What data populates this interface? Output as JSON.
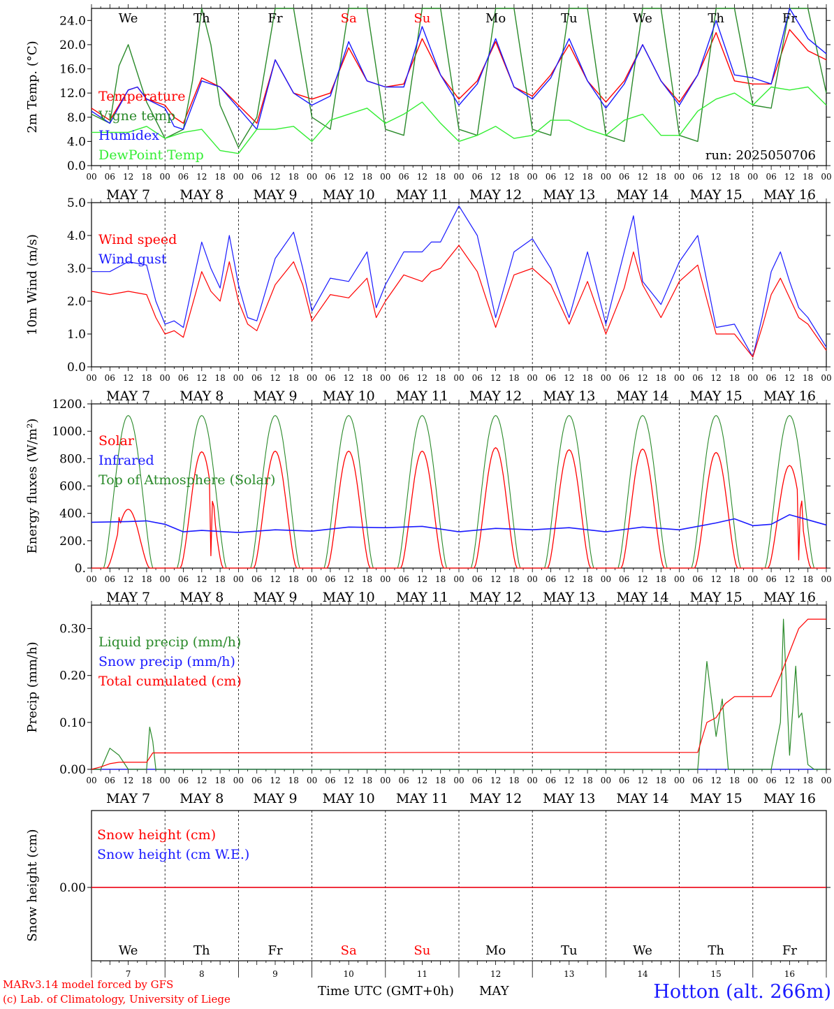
{
  "colors": {
    "red": "#ff0000",
    "blue": "#1a1aff",
    "green": "#2a8a2a",
    "lightgreen": "#33ee33",
    "black": "#000000"
  },
  "days": [
    {
      "abbr": "We",
      "label": "MAY  7",
      "num": "7",
      "weekend": false
    },
    {
      "abbr": "Th",
      "label": "MAY  8",
      "num": "8",
      "weekend": false
    },
    {
      "abbr": "Fr",
      "label": "MAY  9",
      "num": "9",
      "weekend": false
    },
    {
      "abbr": "Sa",
      "label": "MAY 10",
      "num": "10",
      "weekend": true
    },
    {
      "abbr": "Su",
      "label": "MAY 11",
      "num": "11",
      "weekend": true
    },
    {
      "abbr": "Mo",
      "label": "MAY 12",
      "num": "12",
      "weekend": false
    },
    {
      "abbr": "Tu",
      "label": "MAY 13",
      "num": "13",
      "weekend": false
    },
    {
      "abbr": "We",
      "label": "MAY 14",
      "num": "14",
      "weekend": false
    },
    {
      "abbr": "Th",
      "label": "MAY 15",
      "num": "15",
      "weekend": false
    },
    {
      "abbr": "Fr",
      "label": "MAY 16",
      "num": "16",
      "weekend": false
    }
  ],
  "hour_ticks": [
    "00",
    "06",
    "12",
    "18"
  ],
  "run_label": "run: 2025050706",
  "footer": {
    "model": "MARv3.14 model forced by GFS",
    "copyright": "(c) Lab. of Climatology, University of Liege",
    "xlabel": "Time UTC (GMT+0h)",
    "month": "MAY",
    "station": "Hotton (alt. 266m)"
  },
  "chart_data": [
    {
      "type": "line",
      "ylabel": "2m Temp. (°C)",
      "ylim": [
        0,
        26
      ],
      "yticks": [
        "0.0",
        "4.0",
        "8.0",
        "12.0",
        "16.0",
        "20.0",
        "24.0"
      ],
      "x_unit": "hours since MAY 7 00 UTC",
      "series": [
        {
          "name": "Temperature",
          "color": "red",
          "x": [
            0,
            6,
            12,
            15,
            18,
            24,
            27,
            30,
            36,
            42,
            48,
            54,
            60,
            66,
            72,
            78,
            84,
            90,
            96,
            102,
            108,
            114,
            120,
            126,
            132,
            138,
            144,
            150,
            156,
            162,
            168,
            174,
            180,
            186,
            192,
            198,
            204,
            210,
            216,
            222,
            228,
            234,
            240
          ],
          "y": [
            9.5,
            7.5,
            12.5,
            13,
            11,
            10,
            8,
            7,
            14.5,
            13,
            10,
            7,
            17.5,
            12,
            11,
            12,
            19.5,
            14,
            13,
            13.5,
            21,
            15,
            11,
            14,
            20.5,
            13,
            11.5,
            15,
            20,
            14,
            10.5,
            14,
            20,
            14,
            10.5,
            15,
            22,
            14,
            13.5,
            13.5,
            22.5,
            19,
            17.5
          ]
        },
        {
          "name": "Vigne temp",
          "color": "green",
          "x": [
            0,
            6,
            9,
            12,
            18,
            24,
            30,
            33,
            36,
            39,
            42,
            48,
            54,
            60,
            66,
            72,
            78,
            84,
            90,
            96,
            102,
            108,
            114,
            120,
            126,
            132,
            138,
            144,
            150,
            156,
            162,
            168,
            174,
            180,
            186,
            192,
            198,
            204,
            210,
            216,
            222,
            228,
            234,
            240
          ],
          "y": [
            8.5,
            7,
            16.5,
            20,
            10.5,
            4.5,
            6,
            14,
            27,
            20,
            10,
            3,
            8,
            26,
            26,
            8,
            6,
            26,
            26,
            6,
            5,
            26,
            26,
            6,
            5,
            26,
            26,
            6,
            5,
            26,
            26,
            5,
            4,
            26,
            26,
            5,
            4,
            26,
            26,
            10,
            9.5,
            26,
            26,
            12
          ]
        },
        {
          "name": "Humidex",
          "color": "blue",
          "x": [
            0,
            6,
            12,
            15,
            18,
            24,
            27,
            30,
            36,
            42,
            48,
            54,
            60,
            66,
            72,
            78,
            84,
            90,
            96,
            102,
            108,
            114,
            120,
            126,
            132,
            138,
            144,
            150,
            156,
            162,
            168,
            174,
            180,
            186,
            192,
            198,
            204,
            210,
            216,
            222,
            228,
            234,
            240
          ],
          "y": [
            9,
            7,
            12.5,
            13,
            11,
            9.5,
            6.5,
            6,
            14,
            13,
            9.5,
            6,
            17.5,
            12,
            10,
            11.5,
            20.5,
            14,
            13,
            13,
            23,
            15,
            10,
            13.5,
            21,
            13,
            11,
            14.5,
            21,
            14,
            9.5,
            13.5,
            20,
            14,
            10,
            15,
            24,
            15,
            14.5,
            13.5,
            26,
            21,
            18.5
          ]
        },
        {
          "name": "DewPoint Temp",
          "color": "lightgreen",
          "x": [
            0,
            6,
            12,
            18,
            24,
            30,
            36,
            42,
            48,
            54,
            60,
            66,
            72,
            78,
            84,
            90,
            96,
            102,
            108,
            114,
            120,
            126,
            132,
            138,
            144,
            150,
            156,
            162,
            168,
            174,
            180,
            186,
            192,
            198,
            204,
            210,
            216,
            222,
            228,
            234,
            240
          ],
          "y": [
            5.5,
            5.5,
            5.5,
            6.5,
            4.5,
            5.5,
            6,
            2.5,
            2,
            6,
            6,
            6.5,
            4,
            7.5,
            8.5,
            9.5,
            7,
            8.5,
            10.5,
            7,
            4,
            5,
            6.5,
            4.5,
            5,
            7.5,
            7.5,
            6,
            5,
            7.5,
            8.5,
            5,
            5,
            9,
            11,
            12,
            10,
            13,
            12.5,
            13,
            10
          ]
        }
      ],
      "legend": [
        "Temperature",
        "Vigne temp",
        "Humidex",
        "DewPoint Temp"
      ]
    },
    {
      "type": "line",
      "ylabel": "10m Wind (m/s)",
      "ylim": [
        0,
        5
      ],
      "yticks": [
        "0.0",
        "1.0",
        "2.0",
        "3.0",
        "4.0",
        "5.0"
      ],
      "series": [
        {
          "name": "Wind speed",
          "color": "red",
          "x": [
            0,
            6,
            12,
            18,
            21,
            24,
            27,
            30,
            36,
            39,
            42,
            45,
            48,
            51,
            54,
            60,
            66,
            69,
            72,
            78,
            84,
            90,
            93,
            96,
            102,
            108,
            111,
            114,
            120,
            126,
            132,
            138,
            144,
            150,
            156,
            162,
            168,
            174,
            177,
            180,
            186,
            192,
            198,
            204,
            210,
            216,
            219,
            222,
            225,
            228,
            231,
            234,
            240
          ],
          "y": [
            2.3,
            2.2,
            2.3,
            2.2,
            1.5,
            1.0,
            1.1,
            0.9,
            2.9,
            2.3,
            2.0,
            3.2,
            2.0,
            1.3,
            1.1,
            2.5,
            3.2,
            2.5,
            1.4,
            2.2,
            2.1,
            2.7,
            1.5,
            2.0,
            2.8,
            2.6,
            2.9,
            3.0,
            3.7,
            2.9,
            1.2,
            2.8,
            3.0,
            2.5,
            1.3,
            2.6,
            1.0,
            2.4,
            3.5,
            2.5,
            1.5,
            2.6,
            3.1,
            1.0,
            1.0,
            0.3,
            1.2,
            2.2,
            2.7,
            2.1,
            1.5,
            1.3,
            0.5
          ]
        },
        {
          "name": "Wind gust",
          "color": "blue",
          "x": [
            0,
            6,
            12,
            18,
            21,
            24,
            27,
            30,
            36,
            39,
            42,
            45,
            48,
            51,
            54,
            60,
            66,
            69,
            72,
            78,
            84,
            90,
            93,
            96,
            102,
            108,
            111,
            114,
            120,
            126,
            132,
            138,
            144,
            150,
            156,
            162,
            168,
            174,
            177,
            180,
            186,
            192,
            198,
            204,
            210,
            216,
            219,
            222,
            225,
            228,
            231,
            234,
            240
          ],
          "y": [
            2.9,
            2.9,
            3.2,
            3.1,
            2.0,
            1.3,
            1.4,
            1.2,
            3.8,
            3.0,
            2.4,
            4.0,
            2.5,
            1.5,
            1.4,
            3.3,
            4.1,
            3.0,
            1.7,
            2.7,
            2.6,
            3.5,
            1.8,
            2.5,
            3.5,
            3.5,
            3.8,
            3.8,
            4.9,
            4.0,
            1.5,
            3.5,
            3.9,
            3.0,
            1.5,
            3.5,
            1.3,
            3.5,
            4.6,
            2.6,
            1.9,
            3.2,
            4.0,
            1.2,
            1.3,
            0.3,
            1.5,
            2.9,
            3.5,
            2.6,
            1.8,
            1.5,
            0.6
          ]
        }
      ],
      "legend": [
        "Wind speed",
        "Wind gust"
      ]
    },
    {
      "type": "line",
      "ylabel": "Energy fluxes (W/m²)",
      "ylim": [
        0,
        1200
      ],
      "yticks": [
        "0.",
        "200.",
        "400.",
        "600.",
        "800.",
        "1000.",
        "1200."
      ],
      "series": [
        {
          "name": "Solar",
          "color": "red",
          "peaks": [
            [
              13,
              430
            ],
            [
              37,
              850
            ],
            [
              61,
              855
            ],
            [
              85,
              855
            ],
            [
              109,
              855
            ],
            [
              133,
              880
            ],
            [
              157,
              865
            ],
            [
              181,
              870
            ],
            [
              205,
              845
            ],
            [
              229,
              750
            ]
          ],
          "peak_extra": [
            [
              9,
              370
            ],
            [
              16,
              200
            ],
            [
              39,
              90
            ],
            [
              40,
              450
            ],
            [
              231,
              60
            ],
            [
              232,
              490
            ]
          ]
        },
        {
          "name": "Infrared",
          "color": "blue",
          "x": [
            0,
            12,
            18,
            24,
            30,
            36,
            48,
            60,
            72,
            84,
            96,
            108,
            120,
            132,
            144,
            156,
            168,
            180,
            192,
            204,
            210,
            216,
            222,
            228,
            240
          ],
          "y": [
            335,
            340,
            345,
            320,
            265,
            275,
            260,
            280,
            270,
            300,
            295,
            305,
            265,
            290,
            280,
            295,
            265,
            300,
            280,
            330,
            360,
            310,
            320,
            390,
            315
          ]
        },
        {
          "name": "Top of Atmosphere (Solar)",
          "color": "green",
          "peak": 1115,
          "sunrise": 4,
          "sunset": 20
        }
      ],
      "legend": [
        "Solar",
        "Infrared",
        "Top of Atmosphere (Solar)"
      ]
    },
    {
      "type": "line",
      "ylabel": "Precip (mm/h)",
      "ylim": [
        0,
        0.35
      ],
      "yticks": [
        "0.00",
        "0.10",
        "0.20",
        "0.30"
      ],
      "series": [
        {
          "name": "Liquid precip (mm/h)",
          "color": "green",
          "x": [
            0,
            3,
            6,
            9,
            12,
            15,
            18,
            19,
            20,
            21,
            24,
            198,
            201,
            204,
            206,
            208,
            210,
            212,
            215,
            216,
            222,
            225,
            226,
            228,
            230,
            231,
            232,
            234,
            236,
            240
          ],
          "y": [
            0,
            0,
            0.045,
            0.03,
            0,
            0,
            0,
            0.09,
            0.06,
            0,
            0,
            0,
            0.23,
            0.07,
            0.15,
            0,
            0,
            0,
            0,
            0,
            0,
            0.1,
            0.32,
            0.03,
            0.22,
            0.11,
            0.12,
            0.01,
            0,
            0
          ]
        },
        {
          "name": "Snow precip (mm/h)",
          "color": "blue",
          "x": [
            0,
            240
          ],
          "y": [
            0,
            0
          ]
        },
        {
          "name": "Total cumulated (cm)",
          "color": "red",
          "x": [
            0,
            3,
            6,
            9,
            12,
            18,
            20,
            24,
            120,
            198,
            201,
            204,
            207,
            210,
            216,
            222,
            225,
            228,
            231,
            234,
            240
          ],
          "y": [
            0,
            0.005,
            0.012,
            0.015,
            0.015,
            0.015,
            0.035,
            0.035,
            0.036,
            0.036,
            0.1,
            0.11,
            0.14,
            0.155,
            0.155,
            0.155,
            0.2,
            0.25,
            0.3,
            0.32,
            0.32
          ]
        }
      ],
      "legend": [
        "Liquid precip (mm/h)",
        "Snow precip (mm/h)",
        "Total cumulated (cm)"
      ]
    },
    {
      "type": "line",
      "ylabel": "Snow height (cm)",
      "ytick": "0.00",
      "series": [
        {
          "name": "Snow height (cm)",
          "color": "red",
          "x": [
            0,
            240
          ],
          "y": [
            0,
            0
          ]
        },
        {
          "name": "Snow height (cm W.E.)",
          "color": "blue",
          "x": [
            0,
            240
          ],
          "y": [
            0,
            0
          ]
        }
      ],
      "legend": [
        "Snow height (cm)",
        "Snow height (cm W.E.)"
      ]
    }
  ]
}
